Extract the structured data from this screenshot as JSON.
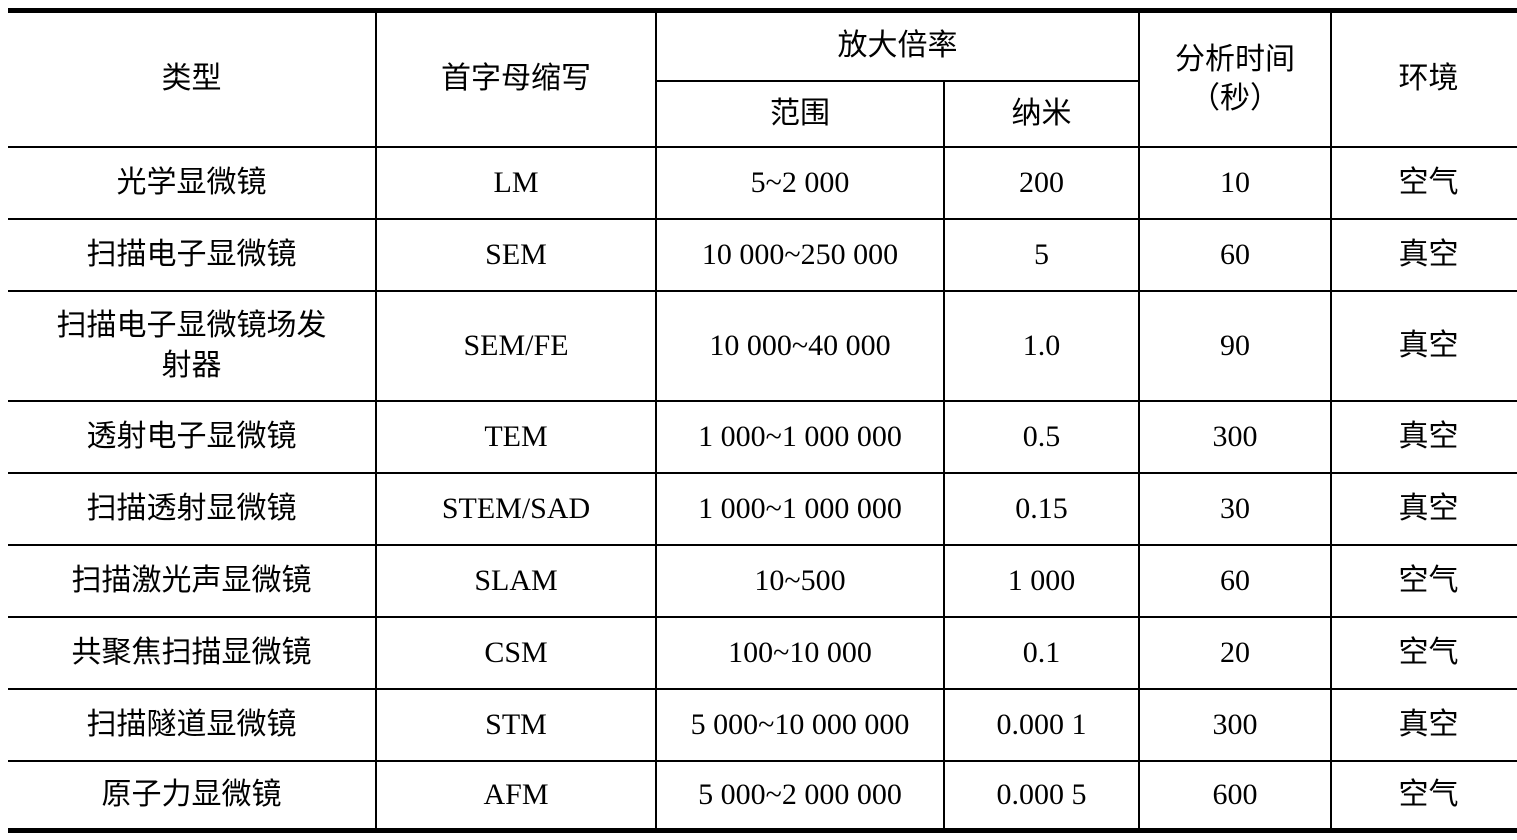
{
  "table": {
    "headers": {
      "type": "类型",
      "acronym": "首字母缩写",
      "magnification": "放大倍率",
      "range": "范围",
      "nanometer": "纳米",
      "analysis_time": "分析时间\n（秒）",
      "environment": "环境"
    },
    "rows": [
      {
        "type": "光学显微镜",
        "acronym": "LM",
        "range": "5~2 000",
        "nanometer": "200",
        "analysis_time": "10",
        "environment": "空气"
      },
      {
        "type": "扫描电子显微镜",
        "acronym": "SEM",
        "range": "10 000~250 000",
        "nanometer": "5",
        "analysis_time": "60",
        "environment": "真空"
      },
      {
        "type": "扫描电子显微镜场发射器",
        "acronym": "SEM/FE",
        "range": "10 000~40 000",
        "nanometer": "1.0",
        "analysis_time": "90",
        "environment": "真空"
      },
      {
        "type": "透射电子显微镜",
        "acronym": "TEM",
        "range": "1 000~1 000 000",
        "nanometer": "0.5",
        "analysis_time": "300",
        "environment": "真空"
      },
      {
        "type": "扫描透射显微镜",
        "acronym": "STEM/SAD",
        "range": "1 000~1 000 000",
        "nanometer": "0.15",
        "analysis_time": "30",
        "environment": "真空"
      },
      {
        "type": "扫描激光声显微镜",
        "acronym": "SLAM",
        "range": "10~500",
        "nanometer": "1 000",
        "analysis_time": "60",
        "environment": "空气"
      },
      {
        "type": "共聚焦扫描显微镜",
        "acronym": "CSM",
        "range": "100~10 000",
        "nanometer": "0.1",
        "analysis_time": "20",
        "environment": "空气"
      },
      {
        "type": "扫描隧道显微镜",
        "acronym": "STM",
        "range": "5 000~10 000 000",
        "nanometer": "0.000 1",
        "analysis_time": "300",
        "environment": "真空"
      },
      {
        "type": "原子力显微镜",
        "acronym": "AFM",
        "range": "5 000~2 000 000",
        "nanometer": "0.000 5",
        "analysis_time": "600",
        "environment": "空气"
      }
    ]
  }
}
